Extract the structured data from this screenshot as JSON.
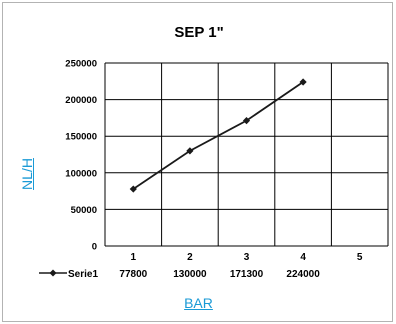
{
  "chart_data": {
    "type": "line",
    "title": "SEP 1\"",
    "xlabel": "BAR",
    "ylabel": "NL/H",
    "categories": [
      "1",
      "2",
      "3",
      "4",
      "5"
    ],
    "series": [
      {
        "name": "Serie1",
        "values": [
          77800,
          130000,
          171300,
          224000,
          null
        ]
      }
    ],
    "ylim": [
      0,
      250000
    ],
    "yticks": [
      "0",
      "50000",
      "100000",
      "150000",
      "200000",
      "250000"
    ],
    "table_values": [
      "77800",
      "130000",
      "171300",
      "224000",
      ""
    ],
    "grid": true,
    "legend_position": "bottom-left",
    "colors": {
      "line": "#1a1a1a",
      "axis_label": "#1a9ad6",
      "grid": "#000000"
    }
  }
}
